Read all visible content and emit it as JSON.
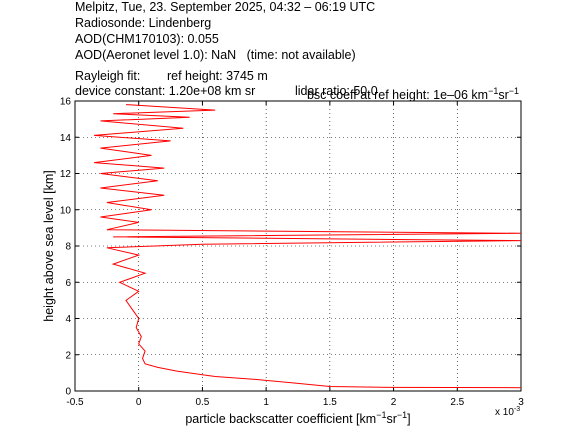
{
  "header": {
    "line1": "Melpitz, Tue, 23. September 2025, 04:32 – 06:19 UTC",
    "line2": "Radiosonde: Lindenberg",
    "line3": "AOD(CHM170103): 0.055",
    "line4": "AOD(Aeronet level 1.0): NaN   (time: not available)",
    "rayleigh_label": "Rayleigh fit:",
    "ref_height": "ref height: 3745 m",
    "bsc_coeff_prefix": "bsc coeff at ref height: 1e–06 km",
    "device_constant": "device constant: 1.20e+08 km sr",
    "lidar_ratio": "lidar ratio: 50.0"
  },
  "chart_data": {
    "type": "line",
    "xlabel_prefix": "particle backscatter coefficient [km",
    "ylabel": "height above sea level [km]",
    "x_exponent_label": "x 10",
    "x_exponent_power": "-3",
    "xlim": [
      -0.5,
      3.0
    ],
    "ylim": [
      0,
      16
    ],
    "xticks": [
      "-0.5",
      "0",
      "0.5",
      "1",
      "1.5",
      "2",
      "2.5",
      "3"
    ],
    "yticks": [
      "0",
      "2",
      "4",
      "6",
      "8",
      "10",
      "12",
      "14",
      "16"
    ],
    "grid": true,
    "line_color": "#ff0000",
    "series": [
      {
        "points": [
          [
            3.0,
            0.18
          ],
          [
            2.0,
            0.2
          ],
          [
            1.5,
            0.25
          ],
          [
            1.2,
            0.45
          ],
          [
            0.9,
            0.65
          ],
          [
            0.6,
            0.8
          ],
          [
            0.5,
            0.9
          ],
          [
            0.3,
            1.1
          ],
          [
            0.15,
            1.3
          ],
          [
            0.05,
            1.5
          ],
          [
            0.03,
            1.8
          ],
          [
            0.05,
            2.2
          ],
          [
            0.0,
            2.6
          ],
          [
            0.02,
            3.0
          ],
          [
            -0.02,
            3.5
          ],
          [
            0.0,
            4.0
          ],
          [
            -0.05,
            4.5
          ],
          [
            -0.1,
            5.0
          ],
          [
            0.0,
            5.5
          ],
          [
            -0.15,
            6.0
          ],
          [
            0.05,
            6.5
          ],
          [
            -0.2,
            7.0
          ],
          [
            0.0,
            7.5
          ],
          [
            -0.25,
            7.9
          ],
          [
            0.5,
            8.1
          ],
          [
            3.0,
            8.3
          ],
          [
            -0.2,
            8.5
          ],
          [
            3.0,
            8.7
          ],
          [
            -0.25,
            8.9
          ],
          [
            0.0,
            9.3
          ],
          [
            -0.3,
            9.6
          ],
          [
            0.1,
            10.0
          ],
          [
            -0.25,
            10.4
          ],
          [
            0.2,
            10.8
          ],
          [
            -0.3,
            11.2
          ],
          [
            0.15,
            11.6
          ],
          [
            -0.3,
            12.0
          ],
          [
            0.2,
            12.3
          ],
          [
            -0.35,
            12.6
          ],
          [
            0.1,
            13.0
          ],
          [
            -0.3,
            13.4
          ],
          [
            0.25,
            13.8
          ],
          [
            -0.35,
            14.1
          ],
          [
            0.35,
            14.5
          ],
          [
            -0.3,
            14.9
          ],
          [
            0.4,
            15.1
          ],
          [
            -0.2,
            15.3
          ],
          [
            0.6,
            15.5
          ],
          [
            -0.1,
            15.8
          ]
        ]
      }
    ]
  }
}
